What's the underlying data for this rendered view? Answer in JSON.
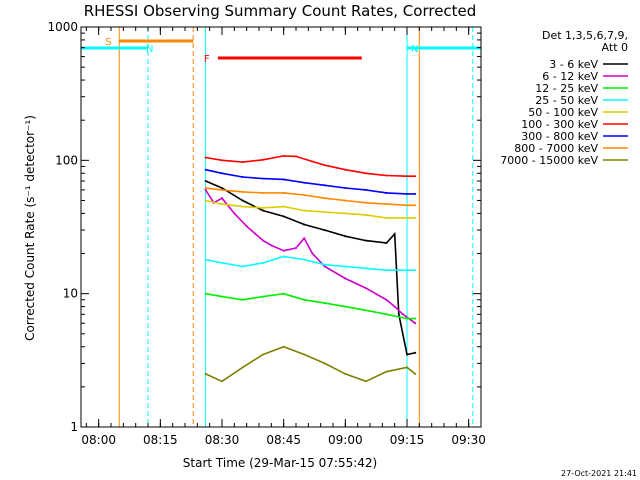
{
  "chart_data": {
    "type": "line",
    "title": "RHESSI Observing Summary Count Rates, Corrected",
    "xlabel": "Start Time (29-Mar-15 07:55:42)",
    "ylabel": "Corrected Count Rate (s⁻¹ detector⁻¹)",
    "y_scale": "log",
    "ylim": [
      1,
      1000
    ],
    "xlim": [
      "07:55:42",
      "09:33:00"
    ],
    "x_ticks": [
      "08:00",
      "08:15",
      "08:30",
      "08:45",
      "09:00",
      "09:15",
      "09:30"
    ],
    "y_ticks": [
      "1",
      "10",
      "100",
      "1000"
    ],
    "legend_header": [
      "Det 1,3,5,6,7,9,",
      "Att 0"
    ],
    "legend_position": "right",
    "grid": false,
    "series": [
      {
        "name": "3 - 6 keV",
        "color": "#000000",
        "points": [
          [
            "08:26",
            70
          ],
          [
            "08:30",
            62
          ],
          [
            "08:35",
            50
          ],
          [
            "08:40",
            42
          ],
          [
            "08:45",
            38
          ],
          [
            "08:50",
            33
          ],
          [
            "08:55",
            30
          ],
          [
            "09:00",
            27
          ],
          [
            "09:05",
            25
          ],
          [
            "09:10",
            24
          ],
          [
            "09:12",
            28
          ],
          [
            "09:13",
            7
          ],
          [
            "09:15",
            3.5
          ],
          [
            "09:17",
            3.6
          ]
        ]
      },
      {
        "name": "6 - 12 keV",
        "color": "#cc00cc",
        "points": [
          [
            "08:26",
            60
          ],
          [
            "08:28",
            48
          ],
          [
            "08:30",
            52
          ],
          [
            "08:33",
            40
          ],
          [
            "08:36",
            32
          ],
          [
            "08:40",
            25
          ],
          [
            "08:42",
            23
          ],
          [
            "08:45",
            21
          ],
          [
            "08:48",
            22
          ],
          [
            "08:50",
            26
          ],
          [
            "08:52",
            20
          ],
          [
            "08:55",
            16
          ],
          [
            "09:00",
            13
          ],
          [
            "09:05",
            11
          ],
          [
            "09:10",
            9
          ],
          [
            "09:12",
            8
          ],
          [
            "09:14",
            7
          ],
          [
            "09:17",
            6
          ]
        ]
      },
      {
        "name": "12 - 25 keV",
        "color": "#00ee00",
        "points": [
          [
            "08:26",
            10
          ],
          [
            "08:30",
            9.5
          ],
          [
            "08:35",
            9
          ],
          [
            "08:40",
            9.5
          ],
          [
            "08:45",
            10
          ],
          [
            "08:50",
            9
          ],
          [
            "08:55",
            8.5
          ],
          [
            "09:00",
            8
          ],
          [
            "09:05",
            7.5
          ],
          [
            "09:10",
            7
          ],
          [
            "09:15",
            6.5
          ],
          [
            "09:17",
            6.5
          ]
        ]
      },
      {
        "name": "25 - 50 keV",
        "color": "#00ffff",
        "points": [
          [
            "08:26",
            18
          ],
          [
            "08:30",
            17
          ],
          [
            "08:35",
            16
          ],
          [
            "08:40",
            17
          ],
          [
            "08:45",
            19
          ],
          [
            "08:50",
            18
          ],
          [
            "08:55",
            16.5
          ],
          [
            "09:00",
            16
          ],
          [
            "09:05",
            15.5
          ],
          [
            "09:10",
            15
          ],
          [
            "09:15",
            15
          ],
          [
            "09:17",
            15
          ]
        ]
      },
      {
        "name": "50 - 100 keV",
        "color": "#ddcc00",
        "points": [
          [
            "08:26",
            50
          ],
          [
            "08:30",
            47
          ],
          [
            "08:35",
            45
          ],
          [
            "08:40",
            44
          ],
          [
            "08:45",
            45
          ],
          [
            "08:50",
            42
          ],
          [
            "08:55",
            41
          ],
          [
            "09:00",
            40
          ],
          [
            "09:05",
            39
          ],
          [
            "09:10",
            37
          ],
          [
            "09:15",
            37
          ],
          [
            "09:17",
            37
          ]
        ]
      },
      {
        "name": "100 - 300 keV",
        "color": "#ff0000",
        "points": [
          [
            "08:26",
            105
          ],
          [
            "08:30",
            100
          ],
          [
            "08:35",
            97
          ],
          [
            "08:40",
            101
          ],
          [
            "08:45",
            108
          ],
          [
            "08:48",
            107
          ],
          [
            "08:52",
            98
          ],
          [
            "08:55",
            92
          ],
          [
            "09:00",
            85
          ],
          [
            "09:05",
            80
          ],
          [
            "09:10",
            77
          ],
          [
            "09:15",
            76
          ],
          [
            "09:17",
            76
          ]
        ]
      },
      {
        "name": "300 - 800 keV",
        "color": "#0000ff",
        "points": [
          [
            "08:26",
            85
          ],
          [
            "08:30",
            80
          ],
          [
            "08:35",
            75
          ],
          [
            "08:40",
            73
          ],
          [
            "08:45",
            72
          ],
          [
            "08:50",
            68
          ],
          [
            "08:55",
            65
          ],
          [
            "09:00",
            62
          ],
          [
            "09:05",
            60
          ],
          [
            "09:10",
            57
          ],
          [
            "09:15",
            56
          ],
          [
            "09:17",
            56
          ]
        ]
      },
      {
        "name": "800 - 7000 keV",
        "color": "#ff8800",
        "points": [
          [
            "08:26",
            62
          ],
          [
            "08:30",
            60
          ],
          [
            "08:35",
            58
          ],
          [
            "08:40",
            57
          ],
          [
            "08:45",
            57
          ],
          [
            "08:50",
            55
          ],
          [
            "08:55",
            52
          ],
          [
            "09:00",
            50
          ],
          [
            "09:05",
            48
          ],
          [
            "09:10",
            47
          ],
          [
            "09:15",
            46
          ],
          [
            "09:17",
            46
          ]
        ]
      },
      {
        "name": "7000 - 15000 keV",
        "color": "#808000",
        "points": [
          [
            "08:26",
            2.5
          ],
          [
            "08:30",
            2.2
          ],
          [
            "08:35",
            2.8
          ],
          [
            "08:40",
            3.5
          ],
          [
            "08:45",
            4
          ],
          [
            "08:50",
            3.5
          ],
          [
            "08:55",
            3
          ],
          [
            "09:00",
            2.5
          ],
          [
            "09:05",
            2.2
          ],
          [
            "09:10",
            2.6
          ],
          [
            "09:15",
            2.8
          ],
          [
            "09:17",
            2.5
          ]
        ]
      }
    ],
    "flags": [
      {
        "label": "S",
        "color": "#ff8800",
        "start": "08:05",
        "end": "08:23"
      },
      {
        "label": "N",
        "color": "#00ffff",
        "start": "07:55:42",
        "end": "08:12"
      },
      {
        "label": "N",
        "color": "#00ffff",
        "start": "09:15",
        "end": "09:33"
      },
      {
        "label": "F",
        "color": "#ff0000",
        "start": "08:29",
        "end": "09:04"
      }
    ],
    "vlines": [
      {
        "time": "08:05",
        "color": "#ff8800",
        "style": "solid"
      },
      {
        "time": "08:12",
        "color": "#00ffff",
        "style": "dashed"
      },
      {
        "time": "08:23",
        "color": "#ff8800",
        "style": "dashed"
      },
      {
        "time": "08:26",
        "color": "#00ffff",
        "style": "solid"
      },
      {
        "time": "09:15",
        "color": "#00ffff",
        "style": "solid"
      },
      {
        "time": "09:18",
        "color": "#ff8800",
        "style": "solid"
      },
      {
        "time": "09:31",
        "color": "#00ffff",
        "style": "dashed"
      }
    ]
  },
  "timestamp": "27-Oct-2021 21:41"
}
